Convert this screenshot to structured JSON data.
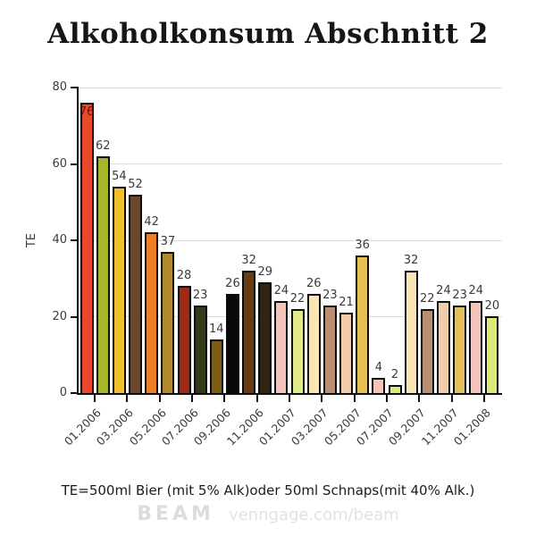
{
  "title": "Alkoholkonsum Abschnitt 2",
  "footer_note": "TE=500ml Bier (mit 5% Alk)oder 50ml Schnaps(mit 40% Alk.)",
  "watermark": {
    "brand": "BEAM",
    "url": "venngage.com/beam"
  },
  "chart_data": {
    "type": "bar",
    "title": "Alkoholkonsum Abschnitt 2",
    "xlabel": "",
    "ylabel": "TE",
    "ylim": [
      0,
      80
    ],
    "yticks": [
      0,
      20,
      40,
      60,
      80
    ],
    "grid": true,
    "legend": false,
    "bars_per_tick": 2,
    "x_tick_labels": [
      "01.2006",
      "03.2006",
      "05.2006",
      "07.2006",
      "09.2006",
      "11.2006",
      "01.2007",
      "03.2007",
      "05.2007",
      "07.2007",
      "09.2007",
      "11.2007",
      "01.2008"
    ],
    "values": [
      76,
      62,
      54,
      52,
      42,
      37,
      28,
      23,
      14,
      26,
      32,
      29,
      24,
      22,
      26,
      23,
      21,
      36,
      4,
      2,
      32,
      22,
      24,
      23,
      24,
      20
    ],
    "bar_colors": [
      "#E8492B",
      "#A6B52A",
      "#F0BF2E",
      "#6B4730",
      "#EC7E26",
      "#B28A2B",
      "#A02815",
      "#333C16",
      "#7E5E10",
      "#0A0708",
      "#6B3A10",
      "#332511",
      "#F6C3BA",
      "#DFE98A",
      "#FAE6B4",
      "#BA8E72",
      "#F2CDAC",
      "#E3BF56",
      "#F6C3BA",
      "#DDE877",
      "#FAE6B4",
      "#BA8E72",
      "#F2CDAC",
      "#E3BF56",
      "#F6C3BA",
      "#DDE877"
    ],
    "bar_border_color": "#0d0d0d",
    "value_label_color": "#3a3a3a",
    "value_label_inside_color": "#5f1708",
    "axis_color": "#111111",
    "gridline_color": "#dcdcdc"
  }
}
